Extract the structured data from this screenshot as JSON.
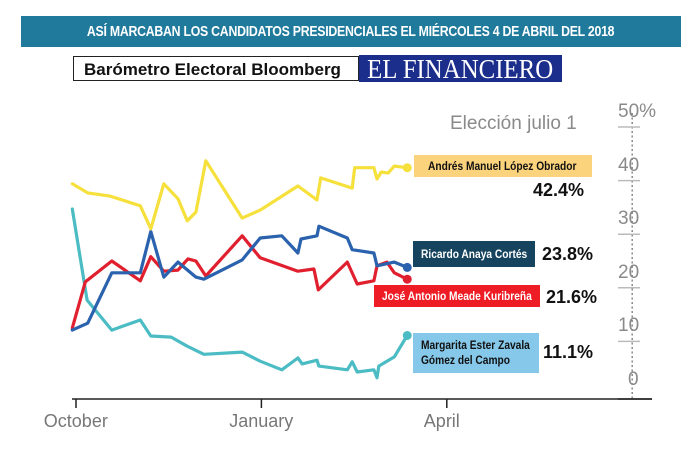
{
  "header": {
    "banner_title": "ASÍ MARCABAN LOS CANDIDATOS PRESIDENCIALES EL MIÉRCOLES 4 DE ABRIL DEL 2018",
    "source_label": "Barómetro Electoral Bloomberg",
    "publisher_logo": "EL FINANCIERO"
  },
  "colors": {
    "banner": "#1f7a9c",
    "logo_bg": "#1c2e8c",
    "amlo": "#f5e03c",
    "anaya": "#2b62ae",
    "meade": "#e0202e",
    "zavala": "#4bbcc4",
    "amlo_label": "#fbd37c",
    "anaya_label": "#16435e",
    "meade_label": "#ee1c24",
    "zavala_label": "#86c8ea"
  },
  "chart_data": {
    "type": "line",
    "title": "ASÍ MARCABAN LOS CANDIDATOS PRESIDENCIALES EL MIÉRCOLES 4 DE ABRIL DEL 2018",
    "subtitle": "Barómetro Electoral Bloomberg",
    "annotation": "Elección julio 1",
    "xlabel": "",
    "ylabel": "",
    "x_unit": "months since October 1, 2017",
    "x_ticks": [
      {
        "value": 0,
        "label": "October"
      },
      {
        "value": 3,
        "label": "January"
      },
      {
        "value": 6,
        "label": "April"
      }
    ],
    "xlim": [
      -0.1,
      9.3
    ],
    "election_marker_x": 9,
    "y_ticks": [
      {
        "value": 50,
        "label": "50%"
      },
      {
        "value": 40,
        "label": "40"
      },
      {
        "value": 30,
        "label": "30"
      },
      {
        "value": 20,
        "label": "20"
      },
      {
        "value": 10,
        "label": "10"
      },
      {
        "value": 0,
        "label": "0"
      }
    ],
    "ylim": [
      0,
      50
    ],
    "grid": false,
    "legend": "direct-labels-right",
    "series": [
      {
        "name": "Andrés Manuel López Obrador",
        "key": "amlo",
        "final_label": "42.4%",
        "x": [
          -0.06,
          0.19,
          0.55,
          1.04,
          1.21,
          1.42,
          1.65,
          1.8,
          1.94,
          2.1,
          2.69,
          2.98,
          3.59,
          3.9,
          3.96,
          4.47,
          4.51,
          4.82,
          4.87,
          4.94,
          5.05,
          5.15,
          5.36
        ],
        "values": [
          39.4,
          37.7,
          37.1,
          35.3,
          31.0,
          39.4,
          36.6,
          32.5,
          34.1,
          43.7,
          33.0,
          34.5,
          39.0,
          36.4,
          40.5,
          38.6,
          42.4,
          42.4,
          40.3,
          41.6,
          41.4,
          42.7,
          42.4
        ]
      },
      {
        "name": "Ricardo Anaya Cortés",
        "key": "anaya",
        "final_label": "23.8%",
        "x": [
          -0.06,
          0.19,
          0.58,
          1.04,
          1.21,
          1.42,
          1.65,
          1.94,
          2.07,
          2.69,
          2.98,
          3.33,
          3.59,
          3.64,
          3.9,
          3.93,
          4.39,
          4.47,
          4.82,
          4.87,
          5.15,
          5.36
        ],
        "values": [
          12.1,
          13.4,
          22.8,
          22.8,
          30.5,
          22.0,
          24.8,
          22.0,
          21.6,
          25.2,
          29.3,
          29.7,
          26.5,
          29.1,
          29.7,
          31.5,
          29.3,
          27.1,
          26.5,
          24.1,
          24.8,
          23.8
        ]
      },
      {
        "name": "José Antonio Meade Kuribreña",
        "key": "meade",
        "final_label": "21.6%",
        "x": [
          -0.06,
          0.15,
          0.58,
          1.04,
          1.21,
          1.42,
          1.65,
          1.81,
          1.94,
          2.1,
          2.69,
          2.98,
          3.59,
          3.85,
          3.92,
          4.39,
          4.55,
          4.82,
          4.87,
          5.03,
          5.15,
          5.36
        ],
        "values": [
          12.5,
          21.1,
          25.0,
          21.3,
          25.8,
          23.1,
          23.3,
          25.4,
          25.0,
          22.2,
          29.7,
          25.6,
          23.1,
          23.5,
          19.6,
          24.8,
          20.7,
          21.3,
          24.1,
          24.8,
          22.8,
          21.6
        ]
      },
      {
        "name": "Margarita Ester Zavala Gómez del Campo",
        "key": "zavala",
        "final_label": "11.1%",
        "x": [
          -0.06,
          0.18,
          0.58,
          1.04,
          1.21,
          1.54,
          1.8,
          2.07,
          2.69,
          2.98,
          3.33,
          3.59,
          3.66,
          3.9,
          3.93,
          4.39,
          4.47,
          4.55,
          4.82,
          4.87,
          4.9,
          5.15,
          5.36
        ],
        "values": [
          34.7,
          17.7,
          12.1,
          14.0,
          11.0,
          10.8,
          9.1,
          7.6,
          8.0,
          6.3,
          4.7,
          6.9,
          5.8,
          6.5,
          5.4,
          4.7,
          6.2,
          4.3,
          4.7,
          3.2,
          5.4,
          7.1,
          11.1
        ]
      }
    ]
  }
}
